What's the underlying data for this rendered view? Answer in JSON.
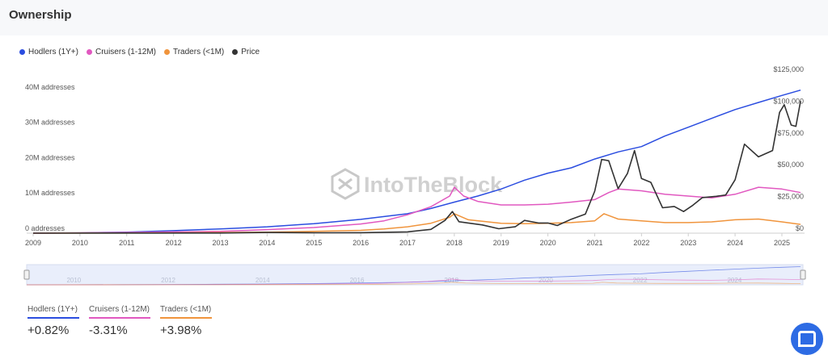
{
  "header": {
    "title": "Ownership"
  },
  "legend": [
    {
      "label": "Hodlers (1Y+)",
      "color": "#2b4de0"
    },
    {
      "label": "Cruisers (1-12M)",
      "color": "#e158c0"
    },
    {
      "label": "Traders (<1M)",
      "color": "#f0943c"
    },
    {
      "label": "Price",
      "color": "#333333"
    }
  ],
  "watermark": "IntoTheBlock",
  "stats": [
    {
      "label": "Hodlers (1Y+)",
      "value": "+0.82%",
      "color": "#2b4de0"
    },
    {
      "label": "Cruisers (1-12M)",
      "value": "-3.31%",
      "color": "#e158c0"
    },
    {
      "label": "Traders (<1M)",
      "value": "+3.98%",
      "color": "#f0943c"
    }
  ],
  "chart_data": {
    "type": "line",
    "x_ticks": [
      "2009",
      "2010",
      "2011",
      "2012",
      "2013",
      "2014",
      "2015",
      "2016",
      "2017",
      "2018",
      "2019",
      "2020",
      "2021",
      "2022",
      "2023",
      "2024",
      "2025"
    ],
    "y_left_ticks": [
      "0 addresses",
      "10M addresses",
      "20M addresses",
      "30M addresses",
      "40M addresses"
    ],
    "y_right_ticks": [
      "$0",
      "$25,000",
      "$50,000",
      "$75,000",
      "$100,000",
      "$125,000"
    ],
    "y_left_range": [
      0,
      45000000
    ],
    "y_right_range": [
      0,
      125000
    ],
    "navigator_ticks": [
      "2010",
      "2012",
      "2014",
      "2016",
      "2018",
      "2020",
      "2022",
      "2024"
    ],
    "series": [
      {
        "name": "Hodlers (1Y+)",
        "axis": "left",
        "color": "#2b4de0",
        "x": [
          2009.0,
          2010.0,
          2011.0,
          2012.0,
          2013.0,
          2014.0,
          2015.0,
          2016.0,
          2017.0,
          2017.5,
          2018.0,
          2018.5,
          2019.0,
          2019.5,
          2020.0,
          2020.5,
          2021.0,
          2021.5,
          2022.0,
          2022.5,
          2023.0,
          2023.5,
          2024.0,
          2024.5,
          2025.0,
          2025.4
        ],
        "y": [
          0,
          100000,
          300000,
          700000,
          1200000,
          1800000,
          2700000,
          3900000,
          5500000,
          7000000,
          8800000,
          10500000,
          12500000,
          15000000,
          17000000,
          18500000,
          21000000,
          23000000,
          24500000,
          27500000,
          30000000,
          32500000,
          35000000,
          37000000,
          39000000,
          40500000
        ]
      },
      {
        "name": "Cruisers (1-12M)",
        "axis": "left",
        "color": "#e158c0",
        "x": [
          2009.0,
          2011.0,
          2013.0,
          2014.0,
          2015.0,
          2016.0,
          2016.5,
          2017.0,
          2017.5,
          2017.9,
          2018.0,
          2018.2,
          2018.5,
          2019.0,
          2019.5,
          2020.0,
          2020.5,
          2021.0,
          2021.3,
          2021.5,
          2022.0,
          2022.5,
          2023.0,
          2023.5,
          2024.0,
          2024.5,
          2025.0,
          2025.4
        ],
        "y": [
          0,
          200000,
          500000,
          1000000,
          1600000,
          2600000,
          3500000,
          5200000,
          7500000,
          10500000,
          13000000,
          10500000,
          9000000,
          8000000,
          8000000,
          8200000,
          8800000,
          9500000,
          11500000,
          12500000,
          12000000,
          11000000,
          10500000,
          10000000,
          11000000,
          13000000,
          12500000,
          11500000
        ]
      },
      {
        "name": "Traders (<1M)",
        "axis": "left",
        "color": "#f0943c",
        "x": [
          2009.0,
          2012.0,
          2014.0,
          2015.0,
          2016.0,
          2016.5,
          2017.0,
          2017.5,
          2017.9,
          2018.0,
          2018.3,
          2019.0,
          2019.5,
          2020.0,
          2020.5,
          2021.0,
          2021.2,
          2021.5,
          2022.0,
          2022.5,
          2023.0,
          2023.5,
          2024.0,
          2024.5,
          2025.0,
          2025.4
        ],
        "y": [
          0,
          100000,
          300000,
          500000,
          800000,
          1200000,
          1800000,
          2800000,
          4500000,
          5500000,
          3800000,
          2800000,
          2700000,
          2800000,
          3000000,
          3500000,
          5500000,
          4000000,
          3500000,
          3000000,
          3000000,
          3200000,
          3800000,
          4000000,
          3200000,
          2500000
        ]
      },
      {
        "name": "Price",
        "axis": "right",
        "color": "#333333",
        "x": [
          2009.0,
          2013.0,
          2014.0,
          2015.0,
          2016.0,
          2017.0,
          2017.5,
          2017.8,
          2017.96,
          2018.1,
          2018.3,
          2018.6,
          2018.95,
          2019.3,
          2019.5,
          2019.8,
          2020.0,
          2020.2,
          2020.5,
          2020.8,
          2021.0,
          2021.15,
          2021.3,
          2021.5,
          2021.7,
          2021.85,
          2022.0,
          2022.2,
          2022.45,
          2022.7,
          2022.9,
          2023.1,
          2023.3,
          2023.6,
          2023.8,
          2024.0,
          2024.2,
          2024.5,
          2024.8,
          2024.95,
          2025.05,
          2025.2,
          2025.3,
          2025.4
        ],
        "y": [
          0,
          100,
          600,
          300,
          400,
          1000,
          3000,
          10000,
          17000,
          9000,
          8000,
          6500,
          3500,
          5000,
          10000,
          8000,
          8000,
          6000,
          11000,
          15000,
          33000,
          58000,
          57000,
          35000,
          47000,
          65000,
          43000,
          40000,
          20000,
          21000,
          17000,
          22000,
          28000,
          29000,
          30000,
          42000,
          70000,
          60000,
          65000,
          95000,
          101000,
          85000,
          84000,
          104000
        ]
      }
    ]
  }
}
